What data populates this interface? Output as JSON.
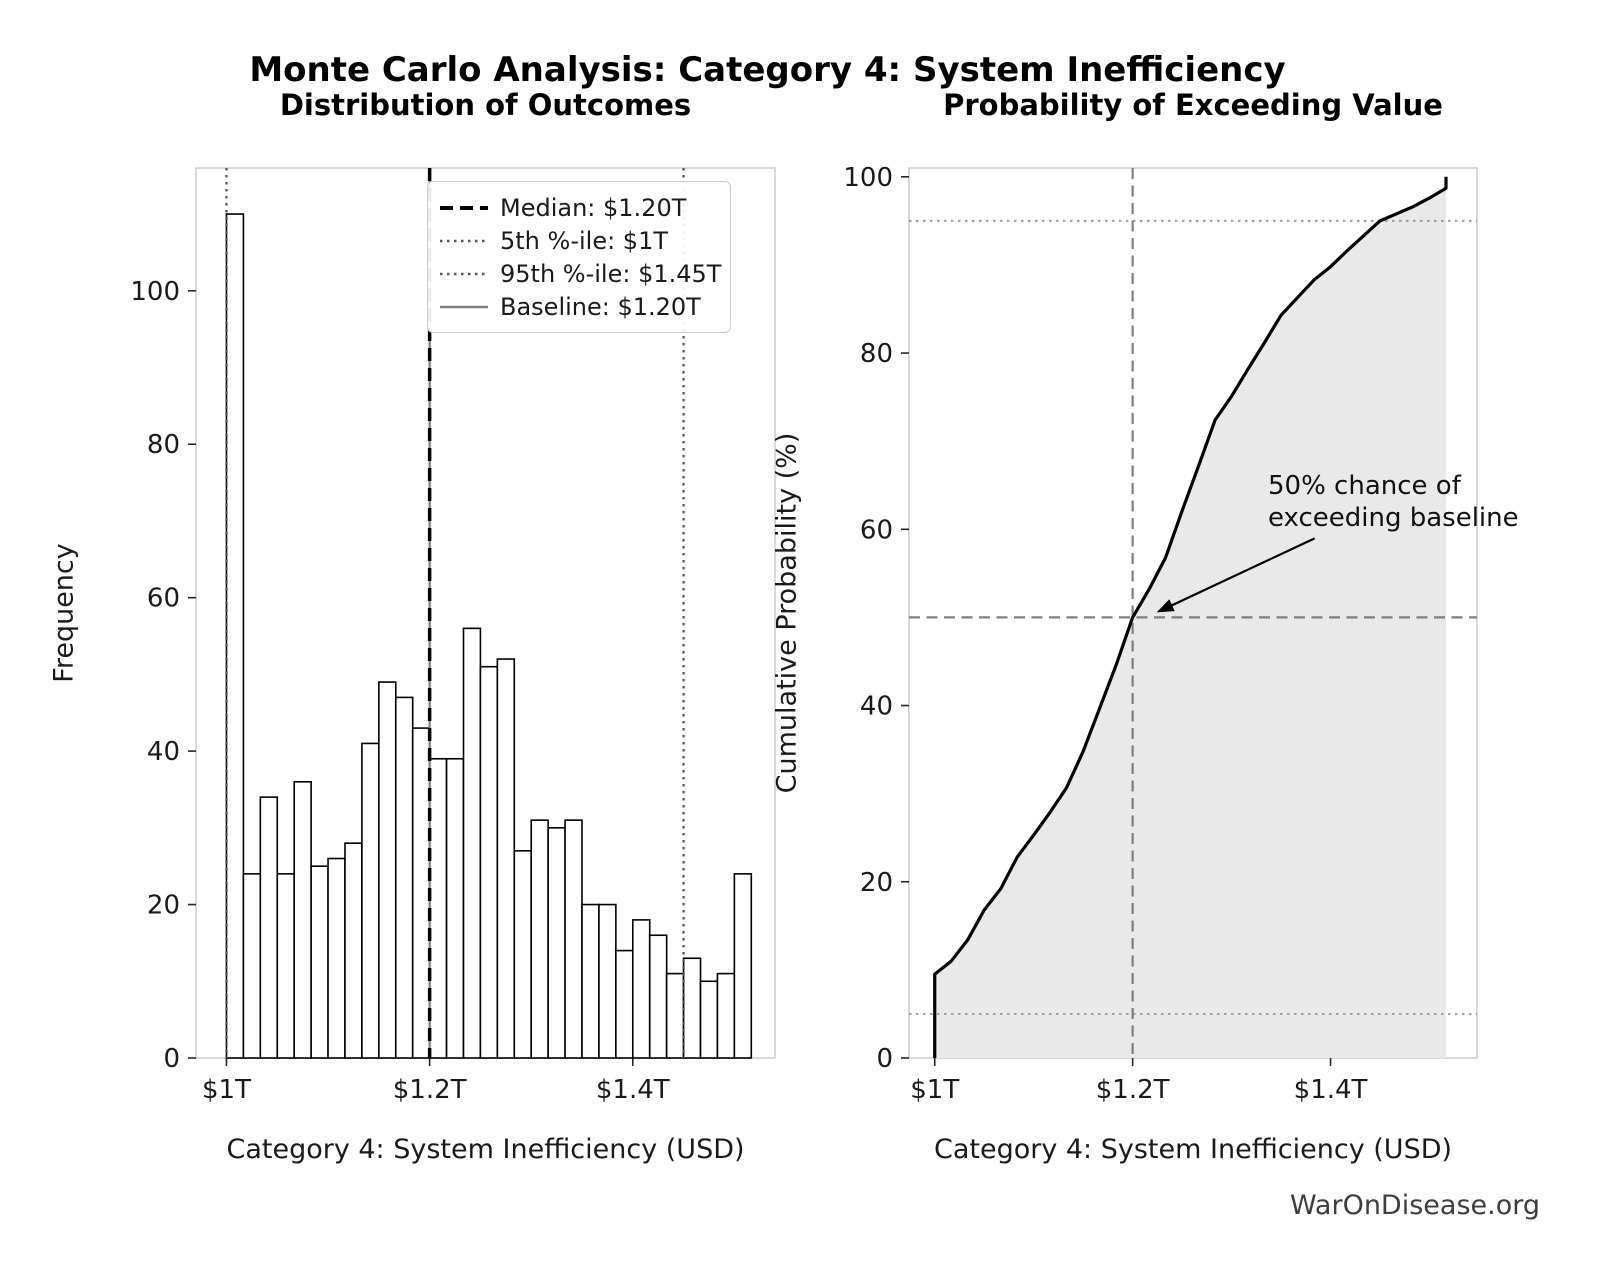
{
  "figure": {
    "suptitle": "Monte Carlo Analysis: Category 4: System Inefficiency",
    "footer": "WarOnDisease.org",
    "background": "#ffffff"
  },
  "colors": {
    "bar_fill": "#ffffff",
    "bar_edge": "#000000",
    "median_line": "#000000",
    "percentile_line": "#555555",
    "baseline_line": "#808080",
    "cdf_line": "#000000",
    "cdf_fill": "#e9e9e9",
    "crosshair_dashed": "#7f7f7f",
    "reference_dotted": "#999999",
    "spine": "#c9c9c9",
    "tick": "#262626",
    "tick_label": "#1a1a1a"
  },
  "chart_data": [
    {
      "type": "bar",
      "subtype": "histogram",
      "title": "Distribution of Outcomes",
      "xlabel": "Category 4: System Inefficiency (USD)",
      "ylabel": "Frequency",
      "x_unit": "trillion USD",
      "bin_start": 1.0,
      "bin_width": 0.0166667,
      "counts": [
        110,
        24,
        34,
        24,
        36,
        25,
        26,
        28,
        41,
        49,
        47,
        43,
        39,
        39,
        56,
        51,
        52,
        27,
        31,
        30,
        31,
        20,
        20,
        14,
        18,
        16,
        11,
        13,
        10,
        11,
        24
      ],
      "xlim": [
        0.97,
        1.54
      ],
      "ylim": [
        0,
        116
      ],
      "x_ticks": [
        {
          "value": 1.0,
          "label": "$1T"
        },
        {
          "value": 1.2,
          "label": "$1.2T"
        },
        {
          "value": 1.4,
          "label": "$1.4T"
        }
      ],
      "y_ticks": [
        0,
        20,
        40,
        60,
        80,
        100
      ],
      "grid": false,
      "legend_position": "upper right",
      "ref_lines": [
        {
          "label": "Median: $1.20T",
          "x": 1.2,
          "style": "dashed",
          "color": "#000000",
          "width": 3.5
        },
        {
          "label": "5th %-ile: $1T",
          "x": 1.0,
          "style": "dotted",
          "color": "#555555",
          "width": 2.3
        },
        {
          "label": "95th %-ile: $1.45T",
          "x": 1.45,
          "style": "dotted",
          "color": "#555555",
          "width": 2.3
        },
        {
          "label": "Baseline: $1.20T",
          "x": 1.2,
          "style": "solid",
          "color": "#808080",
          "width": 2.3
        }
      ]
    },
    {
      "type": "line",
      "subtype": "empirical-cdf",
      "title": "Probability of Exceeding Value",
      "xlabel": "Category 4: System Inefficiency (USD)",
      "ylabel": "Cumulative Probability (%)",
      "x_unit": "trillion USD",
      "x": [
        1.0,
        1.0,
        1.01667,
        1.03333,
        1.05,
        1.06667,
        1.08333,
        1.1,
        1.11667,
        1.13333,
        1.15,
        1.16667,
        1.18333,
        1.2,
        1.21667,
        1.23333,
        1.25,
        1.26667,
        1.28333,
        1.3,
        1.31667,
        1.33333,
        1.35,
        1.36667,
        1.38333,
        1.4,
        1.41667,
        1.43333,
        1.45,
        1.46667,
        1.48333,
        1.5,
        1.51667,
        1.51667
      ],
      "y": [
        0,
        9.5,
        11.0,
        13.4,
        16.8,
        19.2,
        22.8,
        25.3,
        27.9,
        30.7,
        34.8,
        39.7,
        44.6,
        50.0,
        53.2,
        56.8,
        62.1,
        67.2,
        72.4,
        75.1,
        78.2,
        81.2,
        84.3,
        86.3,
        88.3,
        89.8,
        91.6,
        93.3,
        95.0,
        95.8,
        96.6,
        97.6,
        98.7,
        100
      ],
      "fill_under": true,
      "xlim": [
        0.974,
        1.548
      ],
      "ylim": [
        0,
        101
      ],
      "x_ticks": [
        {
          "value": 1.0,
          "label": "$1T"
        },
        {
          "value": 1.2,
          "label": "$1.2T"
        },
        {
          "value": 1.4,
          "label": "$1.4T"
        }
      ],
      "y_ticks": [
        0,
        20,
        40,
        60,
        80,
        100
      ],
      "grid": false,
      "h_ref_lines": [
        {
          "y": 95,
          "style": "dotted"
        },
        {
          "y": 5,
          "style": "dotted"
        },
        {
          "y": 50,
          "style": "dashed"
        }
      ],
      "v_ref_lines": [
        {
          "x": 1.2,
          "style": "dashed"
        }
      ],
      "annotation": {
        "text": "50% chance of\nexceeding baseline",
        "target_x": 1.2,
        "target_y": 50
      }
    }
  ]
}
